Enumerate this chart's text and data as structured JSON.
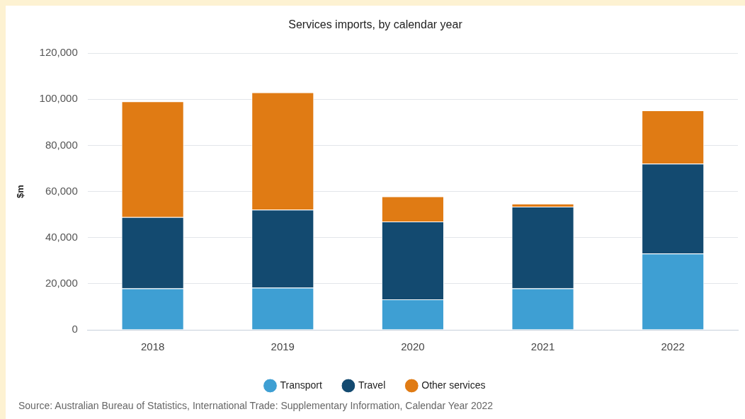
{
  "chart_data": {
    "type": "bar",
    "title": "Services imports, by calendar year",
    "ylabel": "$m",
    "categories": [
      "2018",
      "2019",
      "2020",
      "2021",
      "2022"
    ],
    "stacked": true,
    "series": [
      {
        "name": "Transport",
        "color": "#3e9fd3",
        "values": [
          18000,
          18300,
          13200,
          18000,
          33100
        ]
      },
      {
        "name": "Travel",
        "color": "#134a70",
        "values": [
          30900,
          33800,
          33800,
          35400,
          39000
        ]
      },
      {
        "name": "Other services",
        "color": "#e07b14",
        "values": [
          50200,
          50900,
          10900,
          1300,
          23100
        ]
      }
    ],
    "ylim": [
      0,
      120000
    ],
    "yticks": [
      0,
      {
        "value": 20000,
        "label": "20,000"
      },
      {
        "value": 40000,
        "label": "40,000"
      },
      {
        "value": 60000,
        "label": "60,000"
      },
      {
        "value": 80000,
        "label": "80,000"
      },
      {
        "value": 100000,
        "label": "100,000"
      },
      {
        "value": 120000,
        "label": "120,000"
      }
    ],
    "grid": "y",
    "legend": "bottom",
    "annotations": [
      "Source: Australian Bureau of Statistics, International Trade: Supplementary Information, Calendar Year 2022"
    ]
  }
}
